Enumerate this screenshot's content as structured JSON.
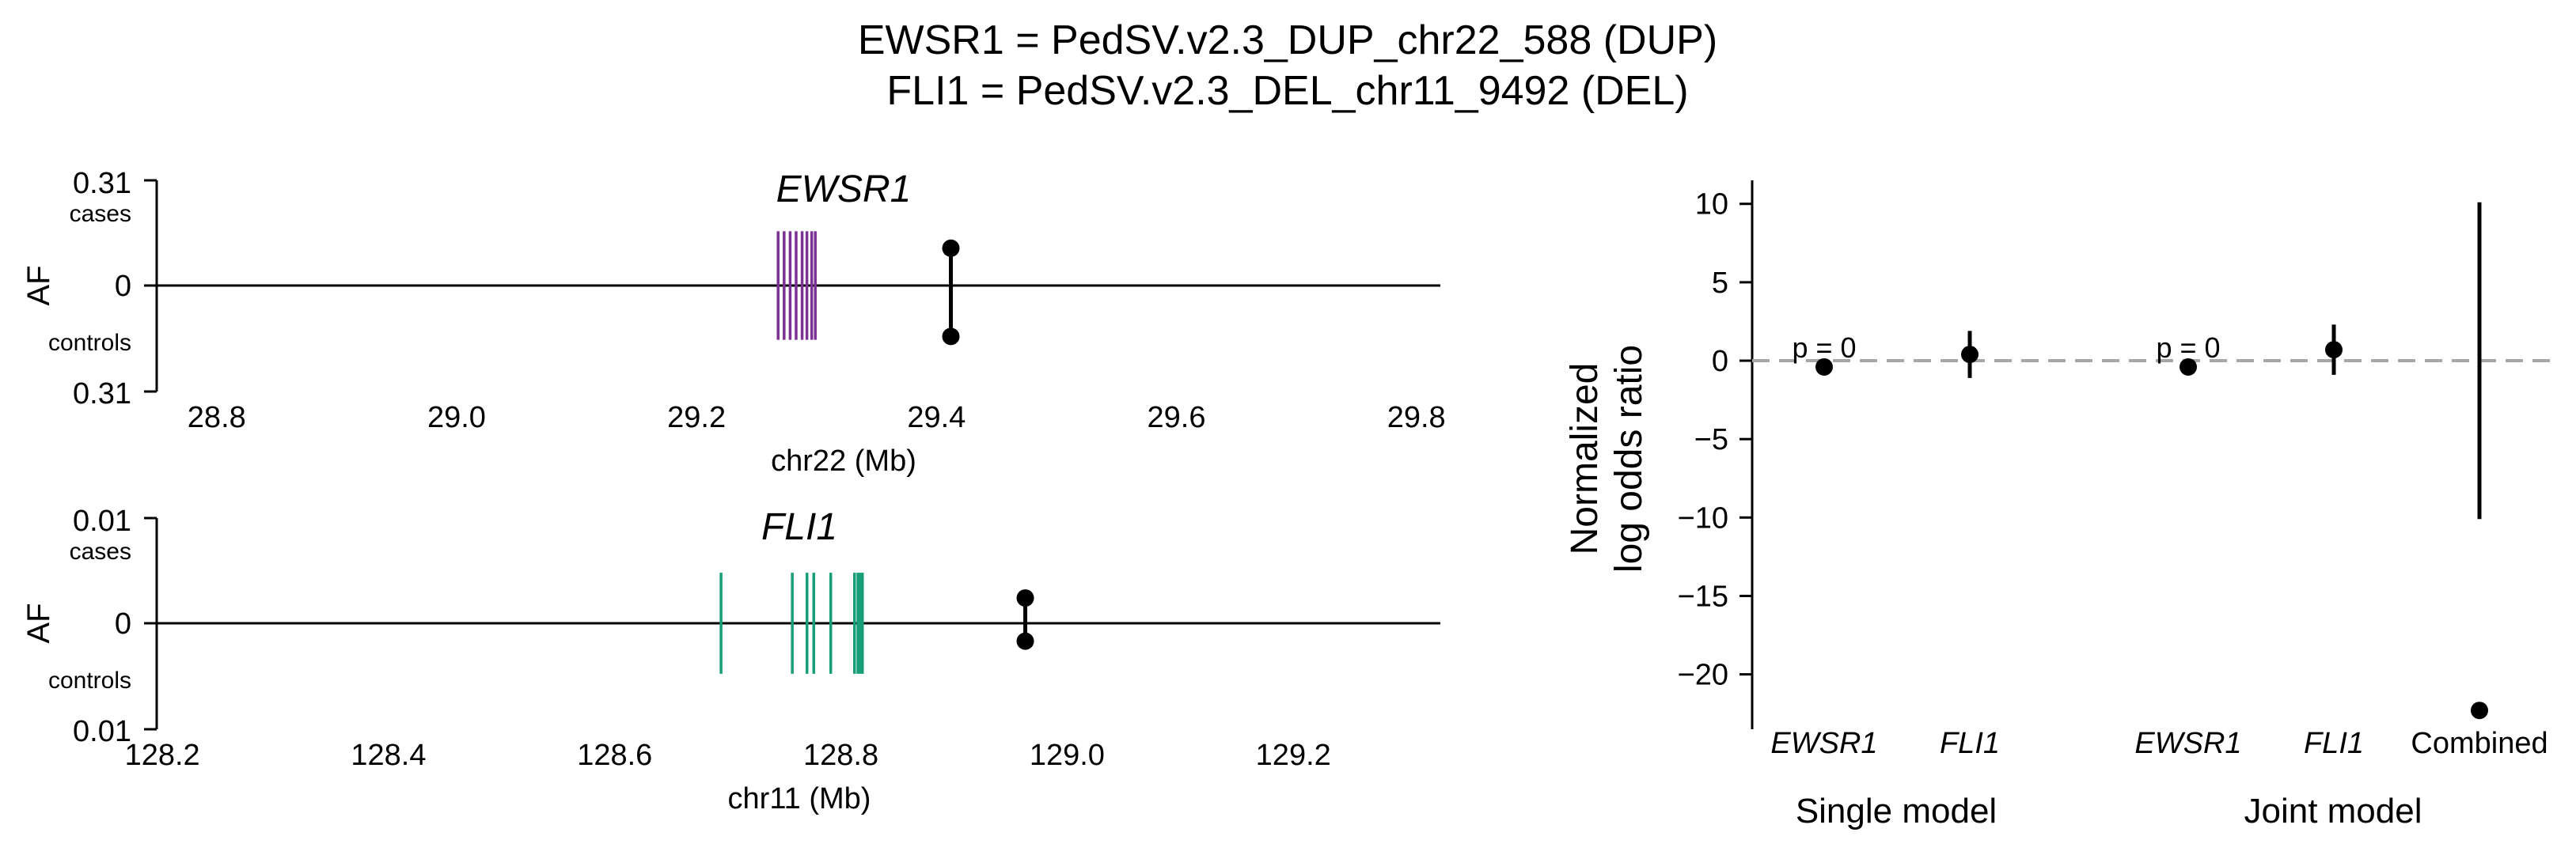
{
  "title": {
    "line1": "EWSR1 = PedSV.v2.3_DUP_chr22_588 (DUP)",
    "line2": "FLI1 = PedSV.v2.3_DEL_chr11_9492 (DEL)"
  },
  "colors": {
    "ewsr1": "#7b3294",
    "fli1": "#1a9e77",
    "points": "#000000",
    "null_line": "#a6a6a6"
  },
  "chart_data": [
    {
      "type": "locus",
      "gene": "EWSR1",
      "ylabel": "AF",
      "ytick_top": "0.31",
      "ytick_mid": "0",
      "ytick_bottom": "0.31",
      "cases_label": "cases",
      "controls_label": "controls",
      "xlabel": "chr22 (Mb)",
      "xlim": [
        28.75,
        29.82
      ],
      "xticks": [
        28.8,
        29.0,
        29.2,
        29.4,
        29.6,
        29.8
      ],
      "xtick_labels": [
        "28.8",
        "29.0",
        "29.2",
        "29.4",
        "29.6",
        "29.8"
      ],
      "af_max": 0.31,
      "exons": [
        29.268,
        29.273,
        29.278,
        29.283,
        29.288,
        29.292,
        29.296,
        29.299
      ],
      "exon_af": 0.16,
      "sv_position": 29.412,
      "af_cases": 0.11,
      "af_controls": 0.15
    },
    {
      "type": "locus",
      "gene": "FLI1",
      "ylabel": "AF",
      "ytick_top": "0.01",
      "ytick_mid": "0",
      "ytick_bottom": "0.01",
      "cases_label": "cases",
      "controls_label": "controls",
      "xlabel": "chr11 (Mb)",
      "xlim": [
        128.195,
        129.33
      ],
      "xticks": [
        128.2,
        128.4,
        128.6,
        128.8,
        129.0,
        129.2
      ],
      "xtick_labels": [
        "128.2",
        "128.4",
        "128.6",
        "128.8",
        "129.0",
        "129.2"
      ],
      "af_max": 0.01,
      "exons": [
        128.694,
        128.757,
        128.77,
        128.776,
        128.791,
        128.812,
        128.815,
        128.817,
        128.819
      ],
      "exon_af": 0.0048,
      "sv_position": 128.963,
      "af_cases": 0.0024,
      "af_controls": 0.0017
    },
    {
      "type": "forest",
      "ylabel_line1": "Normalized",
      "ylabel_line2": "log odds ratio",
      "ylim": [
        -23.5,
        11.5
      ],
      "yticks": [
        10,
        5,
        0,
        -5,
        -10,
        -15,
        -20
      ],
      "ytick_labels": [
        "10",
        "5",
        "0",
        "−5",
        "−10",
        "−15",
        "−20"
      ],
      "null_value": 0,
      "points": [
        {
          "label": "EWSR1",
          "model": "single",
          "estimate": -0.4,
          "lower": null,
          "upper": null,
          "pvalue_label": "p = 0"
        },
        {
          "label": "FLI1",
          "model": "single",
          "estimate": 0.4,
          "lower": -1.1,
          "upper": 1.9,
          "pvalue_label": ""
        },
        {
          "label": "EWSR1",
          "model": "joint",
          "estimate": -0.4,
          "lower": null,
          "upper": null,
          "pvalue_label": "p = 0"
        },
        {
          "label": "FLI1",
          "model": "joint",
          "estimate": 0.7,
          "lower": -0.9,
          "upper": 2.3,
          "pvalue_label": ""
        },
        {
          "label": "Combined",
          "model": "joint",
          "estimate": -22.3,
          "lower": -10.1,
          "upper": 10.1,
          "pvalue_label": ""
        }
      ],
      "group_labels": {
        "single": "Single model",
        "joint": "Joint model"
      }
    }
  ]
}
